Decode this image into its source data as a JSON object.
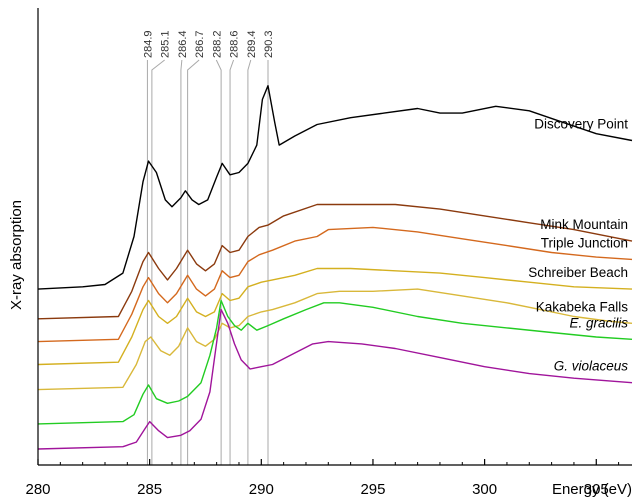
{
  "chart_data": {
    "type": "line",
    "title": "",
    "xlabel": "Energy (eV)",
    "ylabel": "X-ray absorption",
    "xlim": [
      280,
      306.6
    ],
    "x_ticks": [
      280,
      285,
      290,
      295,
      300,
      305
    ],
    "x_tick_labels": [
      "280",
      "285",
      "290",
      "295",
      "300",
      "305"
    ],
    "y_ticks_shown": false,
    "grid": false,
    "legend": "inline labels at right end of each curve",
    "reference_lines": [
      {
        "energy": 284.9,
        "label": "284.9"
      },
      {
        "energy": 285.1,
        "label": "285.1"
      },
      {
        "energy": 286.4,
        "label": "286.4"
      },
      {
        "energy": 286.7,
        "label": "286.7"
      },
      {
        "energy": 288.2,
        "label": "288.2"
      },
      {
        "energy": 288.6,
        "label": "288.6"
      },
      {
        "energy": 289.4,
        "label": "289.4"
      },
      {
        "energy": 290.3,
        "label": "290.3"
      }
    ],
    "reference_line_color": "#a9a9a9",
    "series": [
      {
        "name": "Discovery Point",
        "italic": false,
        "color": "#000000",
        "points": [
          [
            280,
            0.385
          ],
          [
            282,
            0.39
          ],
          [
            283,
            0.395
          ],
          [
            283.8,
            0.42
          ],
          [
            284.3,
            0.5
          ],
          [
            284.7,
            0.62
          ],
          [
            284.95,
            0.665
          ],
          [
            285.3,
            0.64
          ],
          [
            285.7,
            0.58
          ],
          [
            286.0,
            0.565
          ],
          [
            286.4,
            0.585
          ],
          [
            286.6,
            0.6
          ],
          [
            286.9,
            0.58
          ],
          [
            287.2,
            0.57
          ],
          [
            287.6,
            0.58
          ],
          [
            288.0,
            0.63
          ],
          [
            288.25,
            0.66
          ],
          [
            288.6,
            0.635
          ],
          [
            289.0,
            0.64
          ],
          [
            289.4,
            0.66
          ],
          [
            289.8,
            0.7
          ],
          [
            290.05,
            0.8
          ],
          [
            290.3,
            0.83
          ],
          [
            290.6,
            0.75
          ],
          [
            290.8,
            0.7
          ],
          [
            291.5,
            0.72
          ],
          [
            292.5,
            0.745
          ],
          [
            294,
            0.76
          ],
          [
            295.5,
            0.77
          ],
          [
            297,
            0.78
          ],
          [
            298,
            0.77
          ],
          [
            299,
            0.77
          ],
          [
            300.5,
            0.785
          ],
          [
            302,
            0.775
          ],
          [
            303.5,
            0.75
          ],
          [
            305,
            0.725
          ],
          [
            306.6,
            0.71
          ]
        ]
      },
      {
        "name": "Mink Mountain",
        "italic": false,
        "color": "#8b3a0e",
        "points": [
          [
            280,
            0.32
          ],
          [
            283.6,
            0.325
          ],
          [
            284.2,
            0.38
          ],
          [
            284.7,
            0.445
          ],
          [
            284.95,
            0.465
          ],
          [
            285.4,
            0.43
          ],
          [
            285.8,
            0.405
          ],
          [
            286.2,
            0.43
          ],
          [
            286.7,
            0.47
          ],
          [
            287.1,
            0.44
          ],
          [
            287.5,
            0.425
          ],
          [
            287.9,
            0.44
          ],
          [
            288.25,
            0.48
          ],
          [
            288.6,
            0.465
          ],
          [
            289.0,
            0.47
          ],
          [
            289.4,
            0.5
          ],
          [
            289.9,
            0.52
          ],
          [
            290.3,
            0.525
          ],
          [
            291,
            0.545
          ],
          [
            292.5,
            0.57
          ],
          [
            294,
            0.57
          ],
          [
            296,
            0.57
          ],
          [
            298,
            0.56
          ],
          [
            300,
            0.545
          ],
          [
            302,
            0.53
          ],
          [
            304,
            0.515
          ],
          [
            306.6,
            0.49
          ]
        ]
      },
      {
        "name": "Triple Junction",
        "italic": false,
        "color": "#d4691e",
        "points": [
          [
            280,
            0.27
          ],
          [
            283.6,
            0.275
          ],
          [
            284.2,
            0.33
          ],
          [
            284.7,
            0.39
          ],
          [
            284.95,
            0.41
          ],
          [
            285.4,
            0.375
          ],
          [
            285.8,
            0.355
          ],
          [
            286.2,
            0.375
          ],
          [
            286.7,
            0.415
          ],
          [
            287.1,
            0.385
          ],
          [
            287.5,
            0.37
          ],
          [
            287.9,
            0.385
          ],
          [
            288.25,
            0.425
          ],
          [
            288.6,
            0.41
          ],
          [
            289.0,
            0.415
          ],
          [
            289.4,
            0.445
          ],
          [
            289.9,
            0.46
          ],
          [
            290.5,
            0.47
          ],
          [
            291.5,
            0.49
          ],
          [
            292.5,
            0.5
          ],
          [
            293,
            0.515
          ],
          [
            295,
            0.52
          ],
          [
            297,
            0.51
          ],
          [
            299,
            0.495
          ],
          [
            301,
            0.48
          ],
          [
            303,
            0.465
          ],
          [
            305,
            0.455
          ],
          [
            306.6,
            0.45
          ]
        ]
      },
      {
        "name": "Schreiber Beach",
        "italic": false,
        "color": "#d4b020",
        "points": [
          [
            280,
            0.22
          ],
          [
            283.6,
            0.225
          ],
          [
            284.2,
            0.28
          ],
          [
            284.7,
            0.34
          ],
          [
            284.95,
            0.36
          ],
          [
            285.4,
            0.325
          ],
          [
            285.8,
            0.31
          ],
          [
            286.2,
            0.325
          ],
          [
            286.7,
            0.365
          ],
          [
            287.1,
            0.335
          ],
          [
            287.5,
            0.325
          ],
          [
            287.9,
            0.335
          ],
          [
            288.25,
            0.375
          ],
          [
            288.6,
            0.36
          ],
          [
            289.0,
            0.365
          ],
          [
            289.4,
            0.39
          ],
          [
            290,
            0.4
          ],
          [
            290.5,
            0.405
          ],
          [
            291.5,
            0.415
          ],
          [
            292.5,
            0.43
          ],
          [
            294,
            0.43
          ],
          [
            296,
            0.425
          ],
          [
            298,
            0.42
          ],
          [
            300,
            0.41
          ],
          [
            302,
            0.4
          ],
          [
            304,
            0.39
          ],
          [
            306.6,
            0.385
          ]
        ]
      },
      {
        "name": "Kakabeka Falls",
        "italic": false,
        "color": "#d9b83a",
        "points": [
          [
            280,
            0.165
          ],
          [
            283.8,
            0.17
          ],
          [
            284.4,
            0.22
          ],
          [
            284.8,
            0.27
          ],
          [
            285.05,
            0.28
          ],
          [
            285.5,
            0.25
          ],
          [
            285.9,
            0.24
          ],
          [
            286.3,
            0.26
          ],
          [
            286.7,
            0.3
          ],
          [
            287.1,
            0.27
          ],
          [
            287.5,
            0.26
          ],
          [
            287.9,
            0.275
          ],
          [
            288.25,
            0.31
          ],
          [
            288.6,
            0.3
          ],
          [
            289.0,
            0.305
          ],
          [
            289.4,
            0.325
          ],
          [
            290,
            0.335
          ],
          [
            290.5,
            0.34
          ],
          [
            291.5,
            0.355
          ],
          [
            292.5,
            0.375
          ],
          [
            293.5,
            0.38
          ],
          [
            295,
            0.38
          ],
          [
            297,
            0.385
          ],
          [
            299,
            0.37
          ],
          [
            301,
            0.355
          ],
          [
            302.5,
            0.34
          ],
          [
            304,
            0.325
          ],
          [
            305.5,
            0.315
          ],
          [
            306.6,
            0.31
          ]
        ]
      },
      {
        "name": "E. gracilis",
        "italic": true,
        "color": "#22cc22",
        "points": [
          [
            280,
            0.09
          ],
          [
            283.8,
            0.095
          ],
          [
            284.3,
            0.11
          ],
          [
            284.7,
            0.155
          ],
          [
            284.95,
            0.175
          ],
          [
            285.3,
            0.145
          ],
          [
            285.8,
            0.135
          ],
          [
            286.3,
            0.14
          ],
          [
            286.7,
            0.15
          ],
          [
            287.3,
            0.18
          ],
          [
            287.7,
            0.24
          ],
          [
            288.0,
            0.3
          ],
          [
            288.2,
            0.36
          ],
          [
            288.5,
            0.325
          ],
          [
            288.8,
            0.305
          ],
          [
            289.1,
            0.295
          ],
          [
            289.4,
            0.31
          ],
          [
            289.8,
            0.295
          ],
          [
            290.3,
            0.305
          ],
          [
            291,
            0.32
          ],
          [
            292,
            0.34
          ],
          [
            292.8,
            0.355
          ],
          [
            293.5,
            0.355
          ],
          [
            295,
            0.345
          ],
          [
            297,
            0.325
          ],
          [
            299,
            0.31
          ],
          [
            301,
            0.3
          ],
          [
            303,
            0.29
          ],
          [
            305,
            0.28
          ],
          [
            306.6,
            0.275
          ]
        ]
      },
      {
        "name": "G. violaceus",
        "italic": true,
        "color": "#a0149b",
        "points": [
          [
            280,
            0.035
          ],
          [
            283.8,
            0.04
          ],
          [
            284.4,
            0.05
          ],
          [
            284.8,
            0.08
          ],
          [
            285.0,
            0.095
          ],
          [
            285.4,
            0.075
          ],
          [
            285.8,
            0.06
          ],
          [
            286.4,
            0.065
          ],
          [
            286.8,
            0.075
          ],
          [
            287.3,
            0.1
          ],
          [
            287.7,
            0.16
          ],
          [
            287.95,
            0.25
          ],
          [
            288.2,
            0.34
          ],
          [
            288.5,
            0.31
          ],
          [
            288.8,
            0.265
          ],
          [
            289.1,
            0.23
          ],
          [
            289.5,
            0.21
          ],
          [
            290,
            0.215
          ],
          [
            290.5,
            0.22
          ],
          [
            291.5,
            0.245
          ],
          [
            292.3,
            0.265
          ],
          [
            293,
            0.27
          ],
          [
            294.5,
            0.265
          ],
          [
            296,
            0.255
          ],
          [
            298,
            0.235
          ],
          [
            300,
            0.215
          ],
          [
            302,
            0.2
          ],
          [
            304,
            0.19
          ],
          [
            306.6,
            0.18
          ]
        ]
      }
    ]
  }
}
